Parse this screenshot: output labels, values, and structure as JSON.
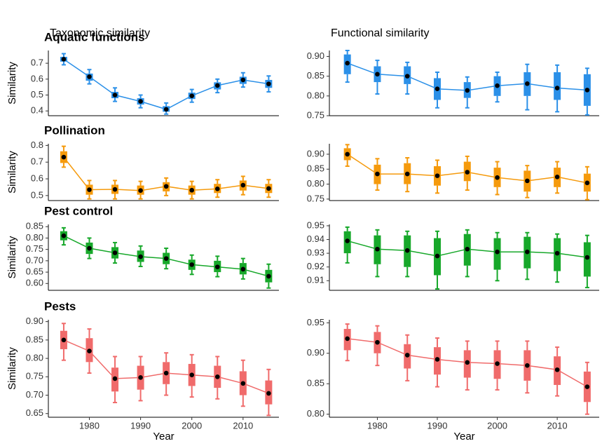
{
  "chart_data": [
    {
      "type": "box-line",
      "title": "Aquatic functions",
      "subtitle": "Taxonomic similarity",
      "ylabel": "Similarity",
      "color": "#2b90e8",
      "x": [
        1975,
        1980,
        1985,
        1990,
        1995,
        2000,
        2005,
        2010,
        2015
      ],
      "xlim": [
        1972,
        2017
      ],
      "ylim": [
        0.37,
        0.78
      ],
      "yticks": [
        0.4,
        0.5,
        0.6,
        0.7
      ],
      "values": [
        0.725,
        0.615,
        0.5,
        0.46,
        0.41,
        0.495,
        0.56,
        0.595,
        0.57
      ],
      "whisker_low": [
        0.69,
        0.57,
        0.46,
        0.42,
        0.38,
        0.455,
        0.515,
        0.55,
        0.52
      ],
      "q1": [
        0.71,
        0.59,
        0.48,
        0.44,
        0.395,
        0.475,
        0.535,
        0.57,
        0.545
      ],
      "q3": [
        0.74,
        0.635,
        0.52,
        0.48,
        0.43,
        0.515,
        0.58,
        0.615,
        0.595
      ],
      "whisker_high": [
        0.76,
        0.66,
        0.545,
        0.5,
        0.45,
        0.535,
        0.6,
        0.64,
        0.62
      ]
    },
    {
      "type": "box-line",
      "subtitle": "Functional similarity",
      "color": "#2b90e8",
      "x": [
        1975,
        1980,
        1985,
        1990,
        1995,
        2000,
        2005,
        2010,
        2015
      ],
      "xlim": [
        1972,
        2017
      ],
      "ylim": [
        0.75,
        0.915
      ],
      "yticks": [
        0.75,
        {
          "value": 0.8,
          "label": "0.80"
        },
        0.85,
        {
          "value": 0.9,
          "label": "0.90"
        }
      ],
      "values": [
        0.883,
        0.855,
        0.85,
        0.818,
        0.814,
        0.826,
        0.831,
        0.82,
        0.815
      ],
      "whisker_low": [
        0.835,
        0.805,
        0.805,
        0.77,
        0.77,
        0.785,
        0.765,
        0.76,
        0.752
      ],
      "q1": [
        0.855,
        0.835,
        0.83,
        0.79,
        0.795,
        0.8,
        0.8,
        0.79,
        0.775
      ],
      "q3": [
        0.905,
        0.875,
        0.875,
        0.845,
        0.835,
        0.85,
        0.86,
        0.86,
        0.855
      ],
      "whisker_high": [
        0.915,
        0.89,
        0.885,
        0.86,
        0.848,
        0.86,
        0.88,
        0.878,
        0.87
      ]
    },
    {
      "type": "box-line",
      "title": "Pollination",
      "ylabel": "Similarity",
      "color": "#f59a0c",
      "x": [
        1975,
        1980,
        1985,
        1990,
        1995,
        2000,
        2005,
        2010,
        2015
      ],
      "xlim": [
        1972,
        2017
      ],
      "ylim": [
        0.47,
        0.81
      ],
      "yticks": [
        0.5,
        0.6,
        0.7,
        0.8
      ],
      "values": [
        0.73,
        0.535,
        0.537,
        0.53,
        0.555,
        0.532,
        0.54,
        0.562,
        0.542
      ],
      "whisker_low": [
        0.67,
        0.48,
        0.48,
        0.48,
        0.5,
        0.48,
        0.49,
        0.505,
        0.49
      ],
      "q1": [
        0.695,
        0.505,
        0.51,
        0.505,
        0.525,
        0.505,
        0.515,
        0.53,
        0.515
      ],
      "q3": [
        0.765,
        0.565,
        0.565,
        0.56,
        0.58,
        0.56,
        0.57,
        0.59,
        0.57
      ],
      "whisker_high": [
        0.795,
        0.59,
        0.59,
        0.585,
        0.605,
        0.585,
        0.595,
        0.615,
        0.595
      ]
    },
    {
      "type": "box-line",
      "color": "#f59a0c",
      "x": [
        1975,
        1980,
        1985,
        1990,
        1995,
        2000,
        2005,
        2010,
        2015
      ],
      "xlim": [
        1972,
        2017
      ],
      "ylim": [
        0.745,
        0.935
      ],
      "yticks": [
        0.75,
        {
          "value": 0.8,
          "label": "0.80"
        },
        0.85,
        {
          "value": 0.9,
          "label": "0.90"
        }
      ],
      "values": [
        0.9,
        0.834,
        0.834,
        0.828,
        0.84,
        0.822,
        0.811,
        0.824,
        0.804
      ],
      "whisker_low": [
        0.86,
        0.78,
        0.775,
        0.77,
        0.78,
        0.765,
        0.755,
        0.77,
        0.748
      ],
      "q1": [
        0.88,
        0.8,
        0.8,
        0.795,
        0.81,
        0.79,
        0.775,
        0.79,
        0.775
      ],
      "q3": [
        0.92,
        0.865,
        0.87,
        0.86,
        0.875,
        0.855,
        0.845,
        0.855,
        0.835
      ],
      "whisker_high": [
        0.932,
        0.885,
        0.888,
        0.88,
        0.893,
        0.875,
        0.862,
        0.875,
        0.858
      ]
    },
    {
      "type": "box-line",
      "title": "Pest control",
      "ylabel": "Similarity",
      "color": "#17a82a",
      "x": [
        1975,
        1980,
        1985,
        1990,
        1995,
        2000,
        2005,
        2010,
        2015
      ],
      "xlim": [
        1972,
        2017
      ],
      "ylim": [
        0.57,
        0.86
      ],
      "yticks": [
        {
          "value": 0.6,
          "label": "0.60"
        },
        0.65,
        {
          "value": 0.7,
          "label": "0.70"
        },
        0.75,
        {
          "value": 0.8,
          "label": "0.80"
        },
        0.85
      ],
      "values": [
        0.81,
        0.755,
        0.735,
        0.718,
        0.71,
        0.683,
        0.673,
        0.663,
        0.632
      ],
      "whisker_low": [
        0.77,
        0.71,
        0.69,
        0.675,
        0.665,
        0.64,
        0.63,
        0.62,
        0.58
      ],
      "q1": [
        0.79,
        0.73,
        0.71,
        0.695,
        0.685,
        0.66,
        0.65,
        0.64,
        0.605
      ],
      "q3": [
        0.83,
        0.78,
        0.76,
        0.745,
        0.735,
        0.705,
        0.7,
        0.69,
        0.66
      ],
      "whisker_high": [
        0.845,
        0.8,
        0.78,
        0.765,
        0.755,
        0.725,
        0.72,
        0.71,
        0.685
      ]
    },
    {
      "type": "box-line",
      "color": "#17a82a",
      "x": [
        1975,
        1980,
        1985,
        1990,
        1995,
        2000,
        2005,
        2010,
        2015
      ],
      "xlim": [
        1972,
        2017
      ],
      "ylim": [
        0.903,
        0.951
      ],
      "yticks": [
        0.91,
        0.92,
        0.93,
        0.94,
        0.95
      ],
      "values": [
        0.939,
        0.933,
        0.932,
        0.928,
        0.933,
        0.931,
        0.931,
        0.93,
        0.927
      ],
      "whisker_low": [
        0.923,
        0.913,
        0.913,
        0.904,
        0.913,
        0.91,
        0.911,
        0.909,
        0.905
      ],
      "q1": [
        0.93,
        0.922,
        0.92,
        0.914,
        0.921,
        0.918,
        0.919,
        0.917,
        0.913
      ],
      "q3": [
        0.946,
        0.943,
        0.943,
        0.941,
        0.944,
        0.941,
        0.942,
        0.941,
        0.938
      ],
      "whisker_high": [
        0.949,
        0.947,
        0.946,
        0.946,
        0.947,
        0.945,
        0.945,
        0.944,
        0.943
      ]
    },
    {
      "type": "box-line",
      "title": "Pests",
      "ylabel": "Similarity",
      "xlabel": "Year",
      "color": "#f06b6b",
      "x": [
        1975,
        1980,
        1985,
        1990,
        1995,
        2000,
        2005,
        2010,
        2015
      ],
      "xlim": [
        1972,
        2017
      ],
      "xticks": [
        1980,
        1990,
        2000,
        2010
      ],
      "ylim": [
        0.64,
        0.905
      ],
      "yticks": [
        0.65,
        {
          "value": 0.7,
          "label": "0.70"
        },
        0.75,
        {
          "value": 0.8,
          "label": "0.80"
        },
        0.85,
        {
          "value": 0.9,
          "label": "0.90"
        }
      ],
      "values": [
        0.85,
        0.82,
        0.745,
        0.748,
        0.76,
        0.755,
        0.75,
        0.732,
        0.705
      ],
      "whisker_low": [
        0.795,
        0.76,
        0.68,
        0.685,
        0.7,
        0.695,
        0.69,
        0.67,
        0.645
      ],
      "q1": [
        0.825,
        0.79,
        0.71,
        0.715,
        0.73,
        0.725,
        0.72,
        0.7,
        0.675
      ],
      "q3": [
        0.875,
        0.855,
        0.775,
        0.78,
        0.79,
        0.785,
        0.78,
        0.765,
        0.74
      ],
      "whisker_high": [
        0.895,
        0.88,
        0.805,
        0.805,
        0.815,
        0.81,
        0.805,
        0.795,
        0.77
      ]
    },
    {
      "type": "box-line",
      "xlabel": "Year",
      "color": "#f06b6b",
      "x": [
        1975,
        1980,
        1985,
        1990,
        1995,
        2000,
        2005,
        2010,
        2015
      ],
      "xlim": [
        1972,
        2017
      ],
      "xticks": [
        1980,
        1990,
        2000,
        2010
      ],
      "ylim": [
        0.795,
        0.955
      ],
      "yticks": [
        {
          "value": 0.8,
          "label": "0.80"
        },
        0.85,
        {
          "value": 0.9,
          "label": "0.90"
        },
        0.95
      ],
      "values": [
        0.924,
        0.918,
        0.897,
        0.89,
        0.885,
        0.883,
        0.88,
        0.873,
        0.845
      ],
      "whisker_low": [
        0.888,
        0.88,
        0.855,
        0.845,
        0.84,
        0.84,
        0.835,
        0.83,
        0.8
      ],
      "q1": [
        0.905,
        0.9,
        0.875,
        0.865,
        0.86,
        0.858,
        0.855,
        0.848,
        0.82
      ],
      "q3": [
        0.94,
        0.935,
        0.915,
        0.91,
        0.905,
        0.905,
        0.905,
        0.895,
        0.87
      ],
      "whisker_high": [
        0.948,
        0.945,
        0.93,
        0.925,
        0.92,
        0.92,
        0.92,
        0.91,
        0.885
      ]
    }
  ]
}
